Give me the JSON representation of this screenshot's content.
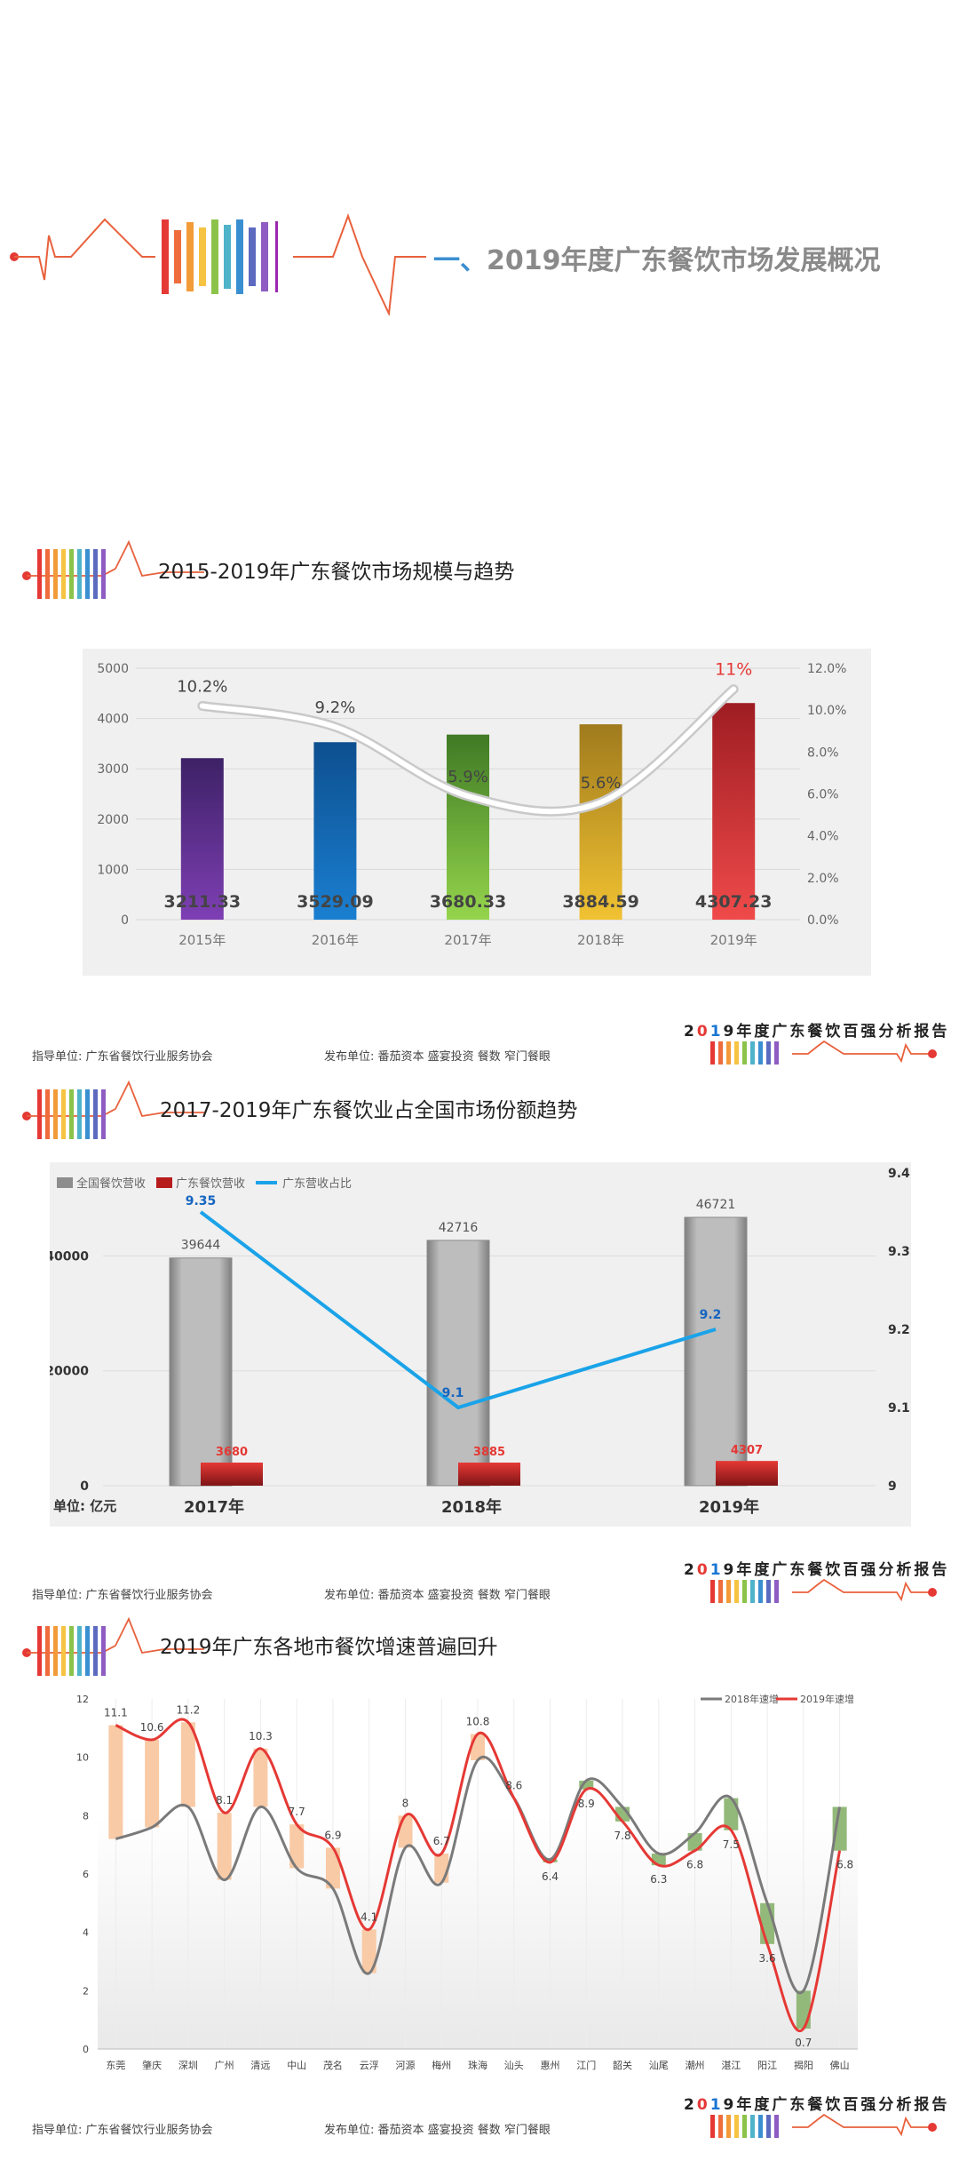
{
  "header": {
    "title_parts": [
      "一、",
      "2019年度广东餐饮市场发展概况"
    ]
  },
  "section1": {
    "title": "2015-2019年广东餐饮市场规模与趋势"
  },
  "section2": {
    "title": "2017-2019年广东餐饮业占全国市场份额趋势"
  },
  "section3": {
    "title": "2019年广东各地市餐饮增速普遍回升"
  },
  "footer": {
    "guide": "指导单位:  广东省餐饮行业服务协会",
    "publish": "发布单位:  番茄资本   盛宴投资   餐数   窄门餐眼",
    "report_parts": [
      "2",
      "0",
      "1",
      "9年度广东餐饮百强分析报告"
    ]
  },
  "colors": {
    "section1_bars": [
      [
        "#7e3fb4",
        "#3d2166"
      ],
      [
        "#1a7fd1",
        "#0d4f8f"
      ],
      [
        "#95d54c",
        "#3f7a25"
      ],
      [
        "#f1c232",
        "#a07b1d"
      ],
      [
        "#f04a4a",
        "#9e1d22"
      ]
    ],
    "national_bar": "#bdbdbd",
    "guangdong_bar": "#c62828",
    "share_line": "#1aa3e8",
    "line_2018": "#7a7a7a",
    "line_2019": "#e53935",
    "rise_fill": "#f8caa6",
    "fall_fill": "#93b97a"
  },
  "chart_data": [
    {
      "type": "bar",
      "title": "2015-2019年广东餐饮市场规模与趋势",
      "categories": [
        "2015年",
        "2016年",
        "2017年",
        "2018年",
        "2019年"
      ],
      "series": [
        {
          "values": [
            3211.33,
            3529.09,
            3680.33,
            3884.59,
            4307.23
          ],
          "labels": [
            "3211.33",
            "3529.09",
            "3680.33",
            "3884.59",
            "4307.23"
          ]
        },
        {
          "type": "line",
          "values": [
            10.2,
            9.2,
            5.9,
            5.6,
            11
          ],
          "labels": [
            "10.2%",
            "9.2%",
            "5.9%",
            "5.6%",
            "11%"
          ]
        }
      ],
      "ylim": [
        0,
        5000
      ],
      "yticks": [
        "0",
        "1000",
        "2000",
        "3000",
        "4000",
        "5000"
      ],
      "y2lim": [
        0,
        12
      ],
      "y2ticks": [
        "0.0%",
        "2.0%",
        "4.0%",
        "6.0%",
        "8.0%",
        "10.0%",
        "12.0%"
      ],
      "grid": true
    },
    {
      "type": "bar",
      "title": "2017-2019年广东餐饮业占全国市场份额趋势",
      "categories": [
        "2017年",
        "2018年",
        "2019年"
      ],
      "series": [
        {
          "name": "全国餐饮营收",
          "values": [
            39644,
            42716,
            46721
          ]
        },
        {
          "name": "广东餐饮营收",
          "values": [
            3680,
            3885,
            4307
          ]
        },
        {
          "name": "广东营收占比",
          "type": "line",
          "values": [
            9.35,
            9.1,
            9.2
          ]
        }
      ],
      "ylim": [
        0,
        46721
      ],
      "yticks": [
        "0",
        "20000",
        "40000"
      ],
      "y2lim": [
        9,
        9.4
      ],
      "y2ticks": [
        "9",
        "9.1",
        "9.2",
        "9.3",
        "9.4"
      ],
      "unit_label": "单位:  亿元",
      "legend": "top-left",
      "grid": true
    },
    {
      "type": "line",
      "title": "2019年广东各地市餐饮增速普遍回升",
      "categories": [
        "东莞",
        "肇庆",
        "深圳",
        "广州",
        "清远",
        "中山",
        "茂名",
        "云浮",
        "河源",
        "梅州",
        "珠海",
        "汕头",
        "惠州",
        "江门",
        "韶关",
        "汕尾",
        "潮州",
        "湛江",
        "阳江",
        "揭阳",
        "佛山"
      ],
      "series": [
        {
          "name": "2018年速增",
          "values": [
            7.2,
            7.6,
            8.3,
            5.8,
            8.3,
            6.2,
            5.5,
            2.6,
            6.9,
            5.7,
            9.9,
            8.6,
            6.5,
            9.2,
            8.3,
            6.7,
            7.4,
            8.6,
            5.0,
            2.0,
            8.3
          ]
        },
        {
          "name": "2019年速增",
          "values": [
            11.1,
            10.6,
            11.2,
            8.1,
            10.3,
            7.7,
            6.9,
            4.1,
            8,
            6.7,
            10.8,
            8.6,
            6.4,
            8.9,
            7.8,
            6.3,
            6.8,
            7.5,
            3.6,
            0.7,
            6.8
          ]
        }
      ],
      "ylim": [
        0,
        12
      ],
      "yticks": [
        "0",
        "2",
        "4",
        "6",
        "8",
        "10",
        "12"
      ],
      "legend": "top-right",
      "grid": true
    }
  ]
}
